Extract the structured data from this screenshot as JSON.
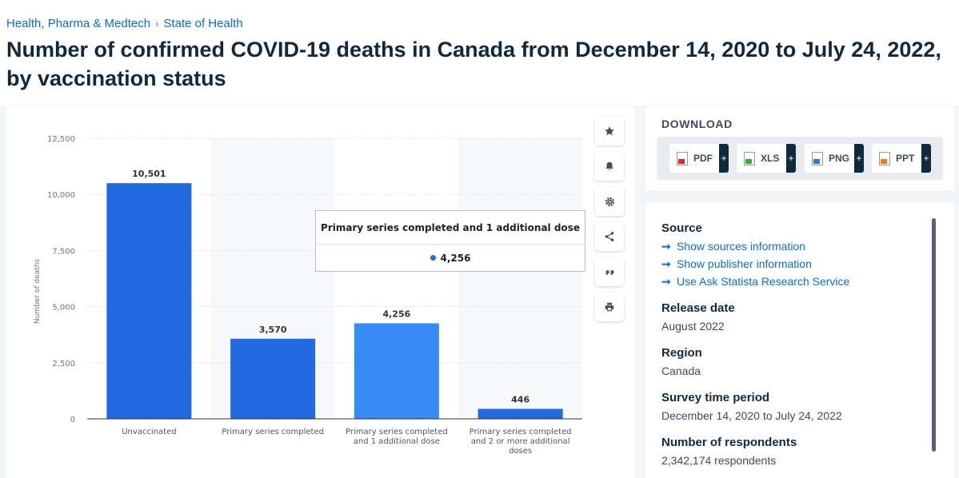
{
  "breadcrumb": {
    "items": [
      "Health, Pharma & Medtech",
      "State of Health"
    ],
    "separator": "›"
  },
  "title": "Number of confirmed COVID-19 deaths in Canada from December 14, 2020 to July 24, 2022, by vaccination status",
  "chart_data": {
    "type": "bar",
    "categories": [
      [
        "Unvaccinated"
      ],
      [
        "Primary series completed"
      ],
      [
        "Primary series completed",
        "and 1 additional dose"
      ],
      [
        "Primary series completed",
        "and 2 or more additional",
        "doses"
      ]
    ],
    "values": [
      10501,
      3570,
      4256,
      446
    ],
    "value_labels": [
      "10,501",
      "3,570",
      "4,256",
      "446"
    ],
    "ylabel": "Number of deaths",
    "ylim": [
      0,
      12500
    ],
    "yticks": [
      0,
      2500,
      5000,
      7500,
      10000,
      12500
    ],
    "ytick_labels": [
      "0",
      "2,500",
      "5,000",
      "7,500",
      "10,000",
      "12,500"
    ],
    "grid": true,
    "highlighted_category": 2,
    "colors": {
      "bar": "#2369e0",
      "bar_highlight": "#3a8af6",
      "band": "#f7f8f9"
    }
  },
  "tooltip": {
    "title": "Primary series completed and 1 additional dose",
    "value": "4,256"
  },
  "toolbar": {
    "icons": [
      "star-icon",
      "bell-icon",
      "gear-icon",
      "share-icon",
      "quote-icon",
      "print-icon"
    ]
  },
  "download": {
    "title": "DOWNLOAD",
    "buttons": [
      {
        "label": "PDF",
        "color": "#d9252b"
      },
      {
        "label": "XLS",
        "color": "#3aa83a"
      },
      {
        "label": "PNG",
        "color": "#2b7bd3"
      },
      {
        "label": "PPT",
        "color": "#f07a1a"
      }
    ],
    "plus": "+"
  },
  "info": {
    "source_title": "Source",
    "links": [
      "Show sources information",
      "Show publisher information",
      "Use Ask Statista Research Service"
    ],
    "link_arrow": "➞",
    "release_date_title": "Release date",
    "release_date": "August 2022",
    "region_title": "Region",
    "region": "Canada",
    "survey_title": "Survey time period",
    "survey": "December 14, 2020 to July 24, 2022",
    "respondents_title": "Number of respondents",
    "respondents": "2,342,174 respondents"
  }
}
